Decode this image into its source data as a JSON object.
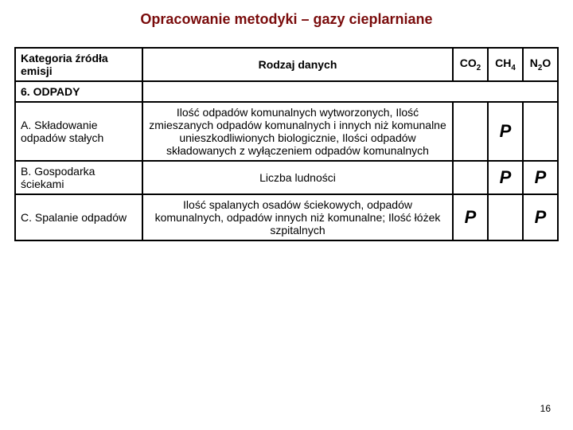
{
  "title": "Opracowanie metodyki – gazy cieplarniane",
  "title_fontsize": 18,
  "title_color": "#7a0c0c",
  "body_fontsize": 14,
  "check_fontsize": 22,
  "page_number": "16",
  "headers": {
    "category": "Kategoria źródła emisji",
    "data_type": "Rodzaj danych",
    "gas1_html": "CO<sub>2</sub>",
    "gas2_html": "CH<sub>4</sub>",
    "gas3_html": "N<sub>2</sub>O"
  },
  "section": "6. ODPADY",
  "rows": [
    {
      "cat": " A. Składowanie odpadów stałych",
      "data": "Ilość odpadów komunalnych wytworzonych, Ilość zmieszanych odpadów komunalnych i innych niż komunalne\nunieszkodliwionych biologicznie,\nIlości odpadów składowanych\nz wyłączeniem odpadów komunalnych",
      "co2": "",
      "ch4": "P",
      "n2o": ""
    },
    {
      "cat": " B. Gospodarka ściekami",
      "data": "Liczba ludności",
      "co2": "",
      "ch4": "P",
      "n2o": "P"
    },
    {
      "cat": " C. Spalanie odpadów",
      "data": "Ilość spalanych osadów ściekowych, odpadów komunalnych, odpadów innych niż komunalne; Ilość łóżek szpitalnych",
      "co2": "P",
      "ch4": "",
      "n2o": "P"
    }
  ]
}
